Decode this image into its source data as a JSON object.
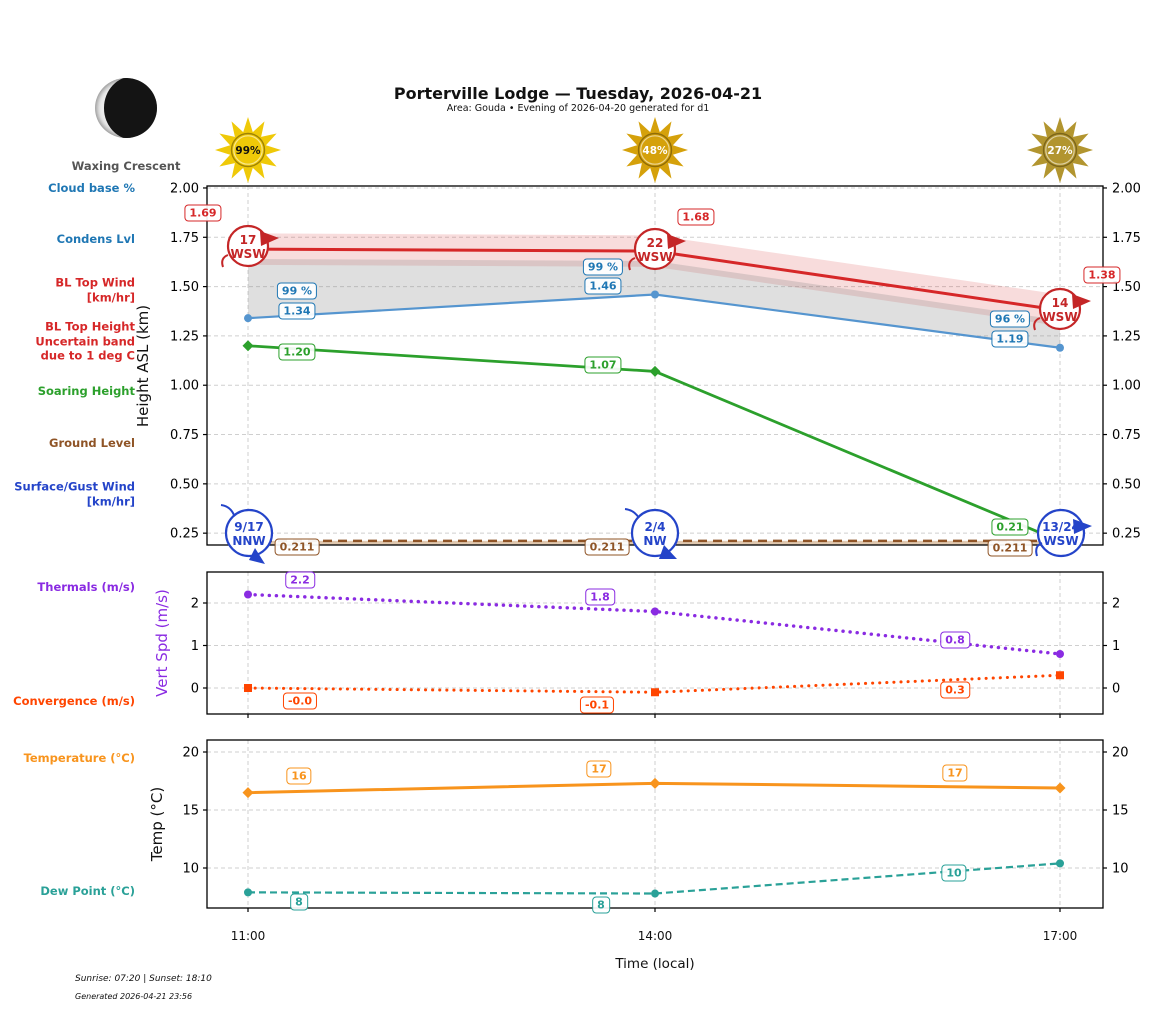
{
  "header": {
    "title": "Porterville Lodge — Tuesday, 2026-04-21",
    "subtitle": "Area: Gouda • Evening of 2026-04-20 generated for d1",
    "moon_phase": "Waxing Crescent"
  },
  "suns": [
    {
      "label": "99%",
      "color": "#EFC908",
      "text_color": "#111111"
    },
    {
      "label": "48%",
      "color": "#D5A10B",
      "text_color": "#ffffff"
    },
    {
      "label": "27%",
      "color": "#B2952F",
      "text_color": "#ffffff"
    }
  ],
  "side_labels": [
    {
      "text": "Cloud base %",
      "color": "#1f77b4"
    },
    {
      "text": "Condens Lvl",
      "color": "#1f77b4"
    },
    {
      "text": "BL Top Wind\n[km/hr]",
      "color": "#d62728"
    },
    {
      "text": "BL Top Height\nUncertain band\ndue to 1 deg C",
      "color": "#d62728"
    },
    {
      "text": "Soaring Height",
      "color": "#2ca02c"
    },
    {
      "text": "Ground Level",
      "color": "#8f5426"
    },
    {
      "text": "Surface/Gust Wind\n[km/hr]",
      "color": "#2444c9"
    },
    {
      "text": "Thermals (m/s)",
      "color": "#8A2BE2"
    },
    {
      "text": "Convergence (m/s)",
      "color": "#FF4500"
    },
    {
      "text": "Temperature (°C)",
      "color": "#F8941D"
    },
    {
      "text": "Dew Point (°C)",
      "color": "#2aa198"
    }
  ],
  "chart_data": [
    {
      "type": "line",
      "panel": "height",
      "x": [
        "11:00",
        "14:00",
        "17:00"
      ],
      "ylabel": "Height ASL (km)",
      "yticks": [
        2.0,
        1.75,
        1.5,
        1.25,
        1.0,
        0.75,
        0.5,
        0.25
      ],
      "ylim": [
        0.19,
        2.01
      ],
      "grid": true,
      "series": [
        {
          "name": "Condens Lvl",
          "color": "#d62728",
          "style": "solid",
          "values": [
            1.69,
            1.68,
            1.38
          ],
          "labels": [
            "1.69",
            "1.68",
            "1.38"
          ],
          "band_halfwidth": 0.08
        },
        {
          "name": "BL Top Height",
          "color": "#5595cf",
          "label_color": "#1f77b4",
          "style": "solid",
          "marker": "circle",
          "values": [
            1.34,
            1.46,
            1.19
          ],
          "labels": [
            "1.34",
            "1.46",
            "1.19"
          ],
          "pct_labels": [
            "99 %",
            "99 %",
            "96 %"
          ]
        },
        {
          "name": "Soaring Height",
          "color": "#2ca02c",
          "style": "solid",
          "marker": "diamond",
          "values": [
            1.2,
            1.07,
            0.21
          ],
          "labels": [
            "1.20",
            "1.07",
            "0.21"
          ]
        },
        {
          "name": "Ground Level",
          "color": "#8f5426",
          "style": "dashed",
          "values": [
            0.211,
            0.211,
            0.211
          ],
          "labels": [
            "0.211",
            "0.211",
            "0.211"
          ]
        }
      ],
      "uncertain_band": {
        "top": [
          1.64,
          1.63,
          1.33
        ],
        "bottom": [
          1.34,
          1.46,
          1.19
        ]
      },
      "bl_top_wind": [
        {
          "speed": "17",
          "dir": "WSW"
        },
        {
          "speed": "22",
          "dir": "WSW"
        },
        {
          "speed": "14",
          "dir": "WSW"
        }
      ],
      "surface_wind": [
        {
          "speed": "9/17",
          "dir": "NNW"
        },
        {
          "speed": "2/4",
          "dir": "NW"
        },
        {
          "speed": "13/24",
          "dir": "WSW"
        }
      ]
    },
    {
      "type": "line",
      "panel": "vert",
      "x": [
        "11:00",
        "14:00",
        "17:00"
      ],
      "ylabel": "Vert Spd (m/s)",
      "yticks": [
        2,
        1,
        0
      ],
      "ylim": [
        -0.6,
        2.7
      ],
      "grid": true,
      "series": [
        {
          "name": "Thermals",
          "color": "#8A2BE2",
          "style": "dotted",
          "marker": "circle",
          "values": [
            2.2,
            1.8,
            0.8
          ],
          "labels": [
            "2.2",
            "1.8",
            "0.8"
          ]
        },
        {
          "name": "Convergence",
          "color": "#FF4500",
          "style": "dotted",
          "marker": "square",
          "values": [
            -0.0,
            -0.1,
            0.3
          ],
          "labels": [
            "-0.0",
            "-0.1",
            "0.3"
          ]
        }
      ]
    },
    {
      "type": "line",
      "panel": "temp",
      "x": [
        "11:00",
        "14:00",
        "17:00"
      ],
      "xlabel": "Time (local)",
      "ylabel": "Temp (°C)",
      "yticks": [
        20,
        15,
        10
      ],
      "ylim": [
        6.6,
        21.0
      ],
      "grid": true,
      "series": [
        {
          "name": "Temperature",
          "color": "#F8941D",
          "style": "solid",
          "marker": "diamond",
          "values": [
            16.5,
            17.3,
            16.9
          ],
          "labels": [
            "16",
            "17",
            "17"
          ]
        },
        {
          "name": "Dew Point",
          "color": "#2aa198",
          "style": "dashed",
          "marker": "circle",
          "values": [
            7.9,
            7.8,
            10.4
          ],
          "labels": [
            "8",
            "8",
            "10"
          ]
        }
      ]
    }
  ],
  "footer": {
    "sun_times": "Sunrise: 07:20 | Sunset: 18:10",
    "generated": "Generated 2026-04-21 23:56"
  }
}
